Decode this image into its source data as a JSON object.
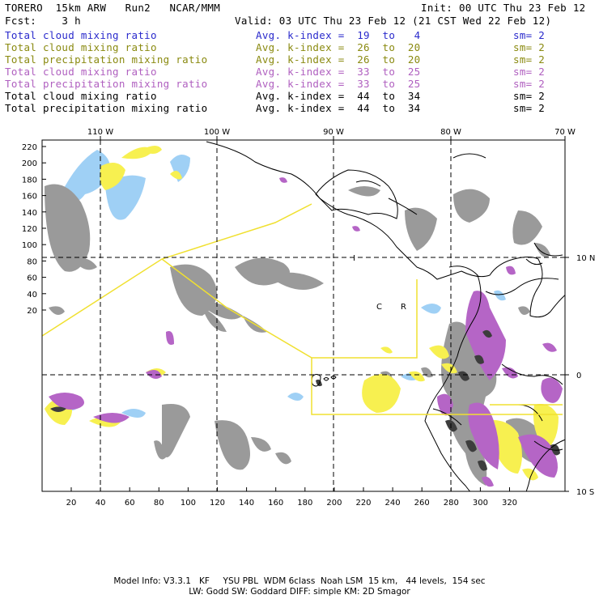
{
  "header": {
    "model": "TORERO  15km ARW   Run2   NCAR/MMM",
    "init": "Init: 00 UTC Thu 23 Feb 12",
    "fcst": "Fcst:    3 h",
    "valid": "Valid: 03 UTC Thu 23 Feb 12 (21 CST Wed 22 Feb 12)"
  },
  "legend": [
    {
      "name": "Total cloud mixing ratio",
      "kindex": "Avg. k-index =  19  to   4",
      "sm": "sm= 2",
      "color": "#2a2acc"
    },
    {
      "name": "Total cloud mixing ratio",
      "kindex": "Avg. k-index =  26  to  20",
      "sm": "sm= 2",
      "color": "#8a8a10"
    },
    {
      "name": "Total precipitation mixing ratio",
      "kindex": "Avg. k-index =  26  to  20",
      "sm": "sm= 2",
      "color": "#8a8a10"
    },
    {
      "name": "Total cloud mixing ratio",
      "kindex": "Avg. k-index =  33  to  25",
      "sm": "sm= 2",
      "color": "#b060c0"
    },
    {
      "name": "Total precipitation mixing ratio",
      "kindex": "Avg. k-index =  33  to  25",
      "sm": "sm= 2",
      "color": "#b060c0"
    },
    {
      "name": "Total cloud mixing ratio",
      "kindex": "Avg. k-index =  44  to  34",
      "sm": "sm= 2",
      "color": "#000000"
    },
    {
      "name": "Total precipitation mixing ratio",
      "kindex": "Avg. k-index =  44  to  34",
      "sm": "sm= 2",
      "color": "#000000"
    }
  ],
  "axes": {
    "top_lon": [
      "110 W",
      "100 W",
      "90 W",
      "80 W",
      "70 W"
    ],
    "right_lat": [
      "10 N",
      "0",
      "10 S"
    ],
    "left_y": [
      "220",
      "200",
      "180",
      "160",
      "140",
      "120",
      "100",
      "80",
      "60",
      "40",
      "20"
    ],
    "bottom_x": [
      "20",
      "40",
      "60",
      "80",
      "100",
      "120",
      "140",
      "160",
      "180",
      "200",
      "220",
      "240",
      "260",
      "280",
      "300",
      "320"
    ]
  },
  "map_labels": {
    "region_label_1": "C",
    "region_label_2": "R",
    "region_label_3": "I"
  },
  "colors": {
    "gray": "#9a9a9a",
    "dark": "#444444",
    "blue": "#9fd0f5",
    "yellow": "#f7f050",
    "purple": "#b565c6",
    "boundary_yellow": "#f0e030"
  },
  "footer": {
    "line1": "Model Info: V3.3.1   KF     YSU PBL  WDM 6class  Noah LSM  15 km,   44 levels,  154 sec",
    "line2": "LW: Godd SW: Goddard DIFF: simple KM: 2D Smagor"
  }
}
